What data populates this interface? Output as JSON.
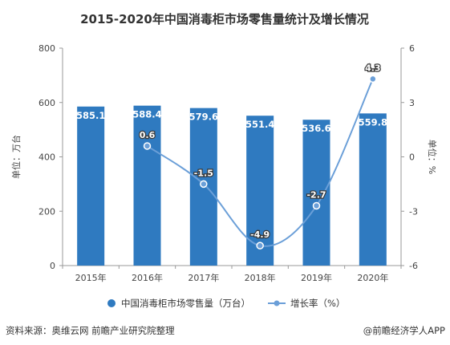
{
  "title": "2015-2020年中国消毒柜市场零售量统计及增长情况",
  "colors": {
    "bar": "#2f7ac0",
    "line": "#6b9fd8",
    "point": "#6b9fd8",
    "text": "#333333",
    "grid": "#d9d9d9"
  },
  "footer": {
    "source": "资料来源：奥维云网 前瞻产业研究院整理",
    "brand": "@前瞻经济学人APP"
  },
  "chart_data": {
    "type": "bar",
    "categories": [
      "2015年",
      "2016年",
      "2017年",
      "2018年",
      "2019年",
      "2020年"
    ],
    "series": [
      {
        "name": "中国消毒柜市场零售量（万台）",
        "type": "bar",
        "axis": "left",
        "values": [
          585.1,
          588.4,
          579.6,
          551.4,
          536.6,
          559.8
        ],
        "labels": [
          "585.1",
          "588.4",
          "579.6",
          "551.4",
          "536.6",
          "559.8"
        ]
      },
      {
        "name": "增长率（%）",
        "type": "line",
        "axis": "right",
        "values": [
          null,
          0.6,
          -1.5,
          -4.9,
          -2.7,
          4.3
        ],
        "labels": [
          "",
          "0.6",
          "-1.5",
          "-4.9",
          "-2.7",
          "4.3"
        ]
      }
    ],
    "y_left": {
      "label": "单位：万台",
      "ylim": [
        0,
        800
      ],
      "ticks": [
        0,
        200,
        400,
        600,
        800
      ],
      "tick_labels": [
        "0",
        "200",
        "400",
        "600",
        "800"
      ]
    },
    "y_right": {
      "label": "单位：%",
      "ylim": [
        -6,
        6
      ],
      "ticks": [
        -6,
        -3,
        0,
        3,
        6
      ],
      "tick_labels": [
        "-6",
        "-3",
        "0",
        "3",
        "6"
      ]
    },
    "grid": false,
    "legend": "bottom"
  }
}
